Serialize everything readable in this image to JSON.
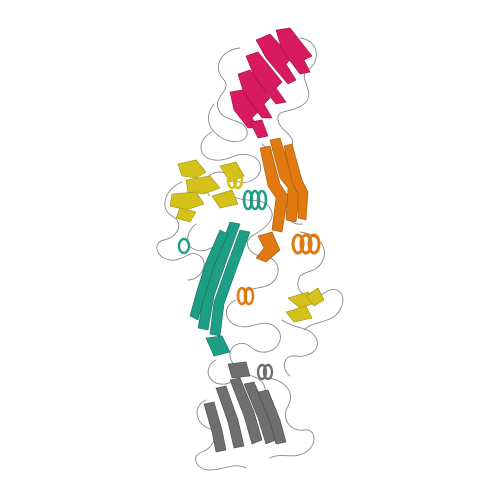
{
  "image": {
    "background": "#ffffff",
    "colors": {
      "coil": "#8a8a8a",
      "magenta_domain": "#d81b60",
      "orange_domain": "#e07a10",
      "yellow_domain": "#d4c21a",
      "teal_domain": "#1f9e86",
      "gray_domain": "#6f6f6f"
    }
  }
}
